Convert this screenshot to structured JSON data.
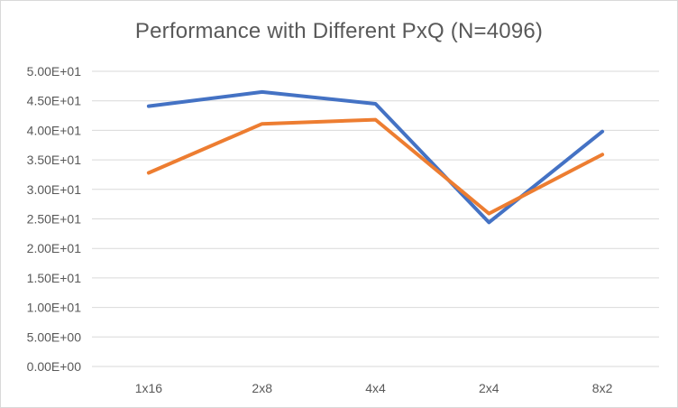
{
  "chart_data": {
    "type": "line",
    "title": "Performance  with Different PxQ (N=4096)",
    "categories": [
      "1x16",
      "2x8",
      "4x4",
      "2x4",
      "8x2"
    ],
    "series": [
      {
        "values": [
          44.1,
          46.5,
          44.5,
          24.4,
          39.8
        ],
        "color": "#4472c4"
      },
      {
        "values": [
          32.8,
          41.1,
          41.8,
          25.9,
          35.9
        ],
        "color": "#ed7d31"
      }
    ],
    "ylim": [
      0,
      50
    ],
    "ytick_values": [
      0,
      5,
      10,
      15,
      20,
      25,
      30,
      35,
      40,
      45,
      50
    ],
    "ytick_labels": [
      "0.00E+00",
      "5.00E+00",
      "1.00E+01",
      "1.50E+01",
      "2.00E+01",
      "2.50E+01",
      "3.00E+01",
      "3.50E+01",
      "4.00E+01",
      "4.50E+01",
      "5.00E+01"
    ],
    "xlabel": "",
    "ylabel": "",
    "grid": true,
    "gridline_color": "#d9d9d9",
    "legend": "none"
  }
}
